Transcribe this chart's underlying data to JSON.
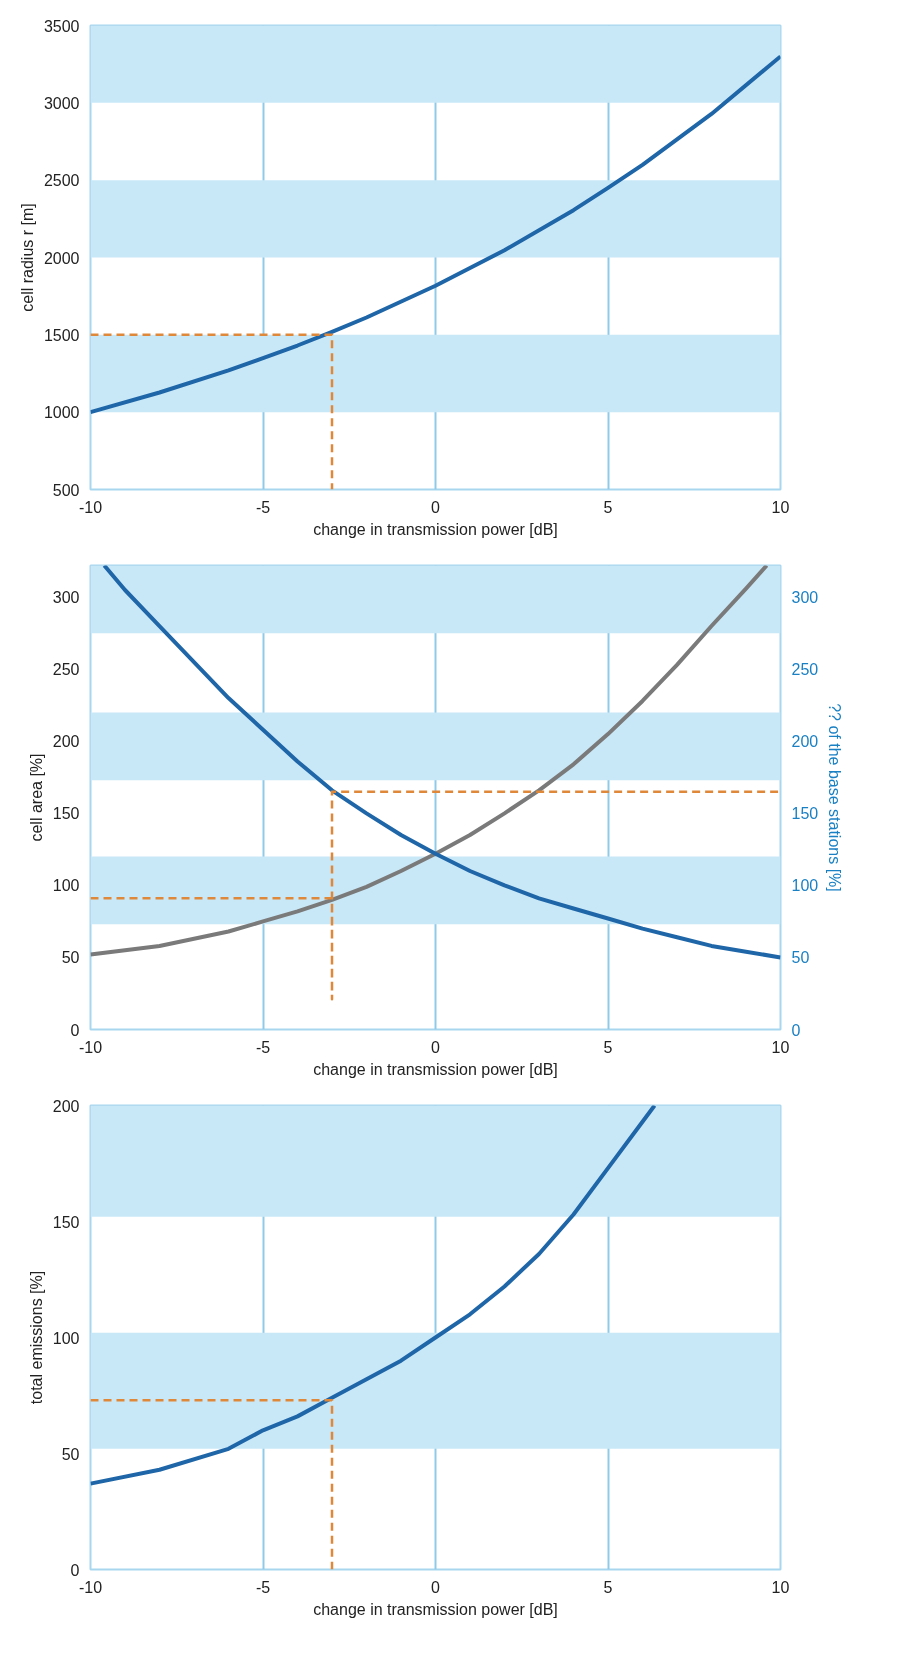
{
  "chart_data": [
    {
      "type": "line",
      "xlabel": "change in transmission power [dB]",
      "ylabel": "cell radius r [m]",
      "xlim": [
        -10,
        10
      ],
      "xticks": [
        -10,
        -5,
        0,
        5,
        10
      ],
      "ylim": [
        500,
        3500
      ],
      "yticks": [
        500,
        1000,
        1500,
        2000,
        2500,
        3000,
        3500
      ],
      "grid": "x",
      "bands": [
        {
          "axis": "y",
          "from": 1000,
          "to": 1500,
          "color": "#c9e8f7"
        },
        {
          "axis": "y",
          "from": 2000,
          "to": 2500,
          "color": "#c9e8f7"
        },
        {
          "axis": "y",
          "from": 3000,
          "to": 3500,
          "color": "#c9e8f7"
        }
      ],
      "series": [
        {
          "color": "#1f66a8",
          "x": [
            -10,
            -8,
            -6,
            -5,
            -4,
            -3,
            -2,
            0,
            2,
            4,
            5,
            6,
            8,
            10
          ],
          "values": [
            1000,
            1127,
            1270,
            1350,
            1431,
            1519,
            1612,
            1817,
            2047,
            2306,
            2450,
            2599,
            2928,
            3300
          ]
        },
        {
          "color": "#e0883a",
          "line_style": "dashed",
          "x": [
            -10,
            -3,
            -3
          ],
          "values": [
            1500,
            1500,
            500
          ]
        }
      ]
    },
    {
      "type": "line",
      "xlabel": "change in transmission power [dB]",
      "ylabel": "cell area [%]",
      "y2label": "?? of the base stations [%]",
      "xlim": [
        -10,
        10
      ],
      "xticks": [
        -10,
        -5,
        0,
        5,
        10
      ],
      "ylim": [
        0,
        322
      ],
      "yticks": [
        0,
        50,
        100,
        150,
        200,
        250,
        300
      ],
      "y2lim": [
        0,
        322
      ],
      "y2ticks": [
        0,
        50,
        100,
        150,
        200,
        250,
        300
      ],
      "grid": "x",
      "bands": [
        {
          "axis": "y",
          "from": 73,
          "to": 120,
          "color": "#c9e8f7"
        },
        {
          "axis": "y",
          "from": 173,
          "to": 220,
          "color": "#c9e8f7"
        },
        {
          "axis": "y",
          "from": 275,
          "to": 322,
          "color": "#c9e8f7"
        }
      ],
      "series": [
        {
          "color": "#7a7a7a",
          "x": [
            -10,
            -8,
            -6,
            -5,
            -4,
            -3,
            -2,
            -1,
            0,
            1,
            2,
            3,
            4,
            5,
            6,
            7,
            8,
            9,
            9.6
          ],
          "values": [
            52,
            58,
            68,
            75,
            82,
            90,
            99,
            110,
            122,
            135,
            150,
            166,
            184,
            205,
            228,
            253,
            280,
            306,
            322
          ]
        },
        {
          "color": "#1f66a8",
          "axis": "y2",
          "x": [
            -9.6,
            -9,
            -8,
            -7,
            -6,
            -5,
            -4,
            -3,
            -2,
            -1,
            0,
            1,
            2,
            3,
            4,
            5,
            6,
            7,
            8,
            9,
            10
          ],
          "values": [
            322,
            305,
            280,
            255,
            230,
            208,
            186,
            166,
            150,
            135,
            122,
            110,
            100,
            91,
            84,
            77,
            70,
            64,
            58,
            54,
            50
          ]
        },
        {
          "color": "#e0883a",
          "line_style": "dashed",
          "x": [
            -10,
            -3,
            -3,
            -3,
            10
          ],
          "values": [
            91,
            91,
            21,
            165,
            165
          ]
        }
      ]
    },
    {
      "type": "line",
      "xlabel": "change in transmission power [dB]",
      "ylabel": "total emissions [%]",
      "xlim": [
        -10,
        10
      ],
      "xticks": [
        -10,
        -5,
        0,
        5,
        10
      ],
      "ylim": [
        0,
        200
      ],
      "yticks": [
        0,
        50,
        100,
        150,
        200
      ],
      "grid": "x",
      "bands": [
        {
          "axis": "y",
          "from": 52,
          "to": 102,
          "color": "#c9e8f7"
        },
        {
          "axis": "y",
          "from": 152,
          "to": 200,
          "color": "#c9e8f7"
        }
      ],
      "series": [
        {
          "color": "#1f66a8",
          "x": [
            -10,
            -8,
            -6,
            -5,
            -4,
            -3,
            -2,
            -1,
            0,
            1,
            2,
            3,
            4,
            5,
            6,
            6.35
          ],
          "values": [
            37,
            43,
            52,
            60,
            66,
            74,
            82,
            90,
            100,
            110,
            122,
            136,
            153,
            173,
            193,
            200
          ]
        },
        {
          "color": "#e0883a",
          "line_style": "dashed",
          "x": [
            -10,
            -3,
            -3
          ],
          "values": [
            73,
            73,
            0
          ]
        }
      ]
    }
  ]
}
